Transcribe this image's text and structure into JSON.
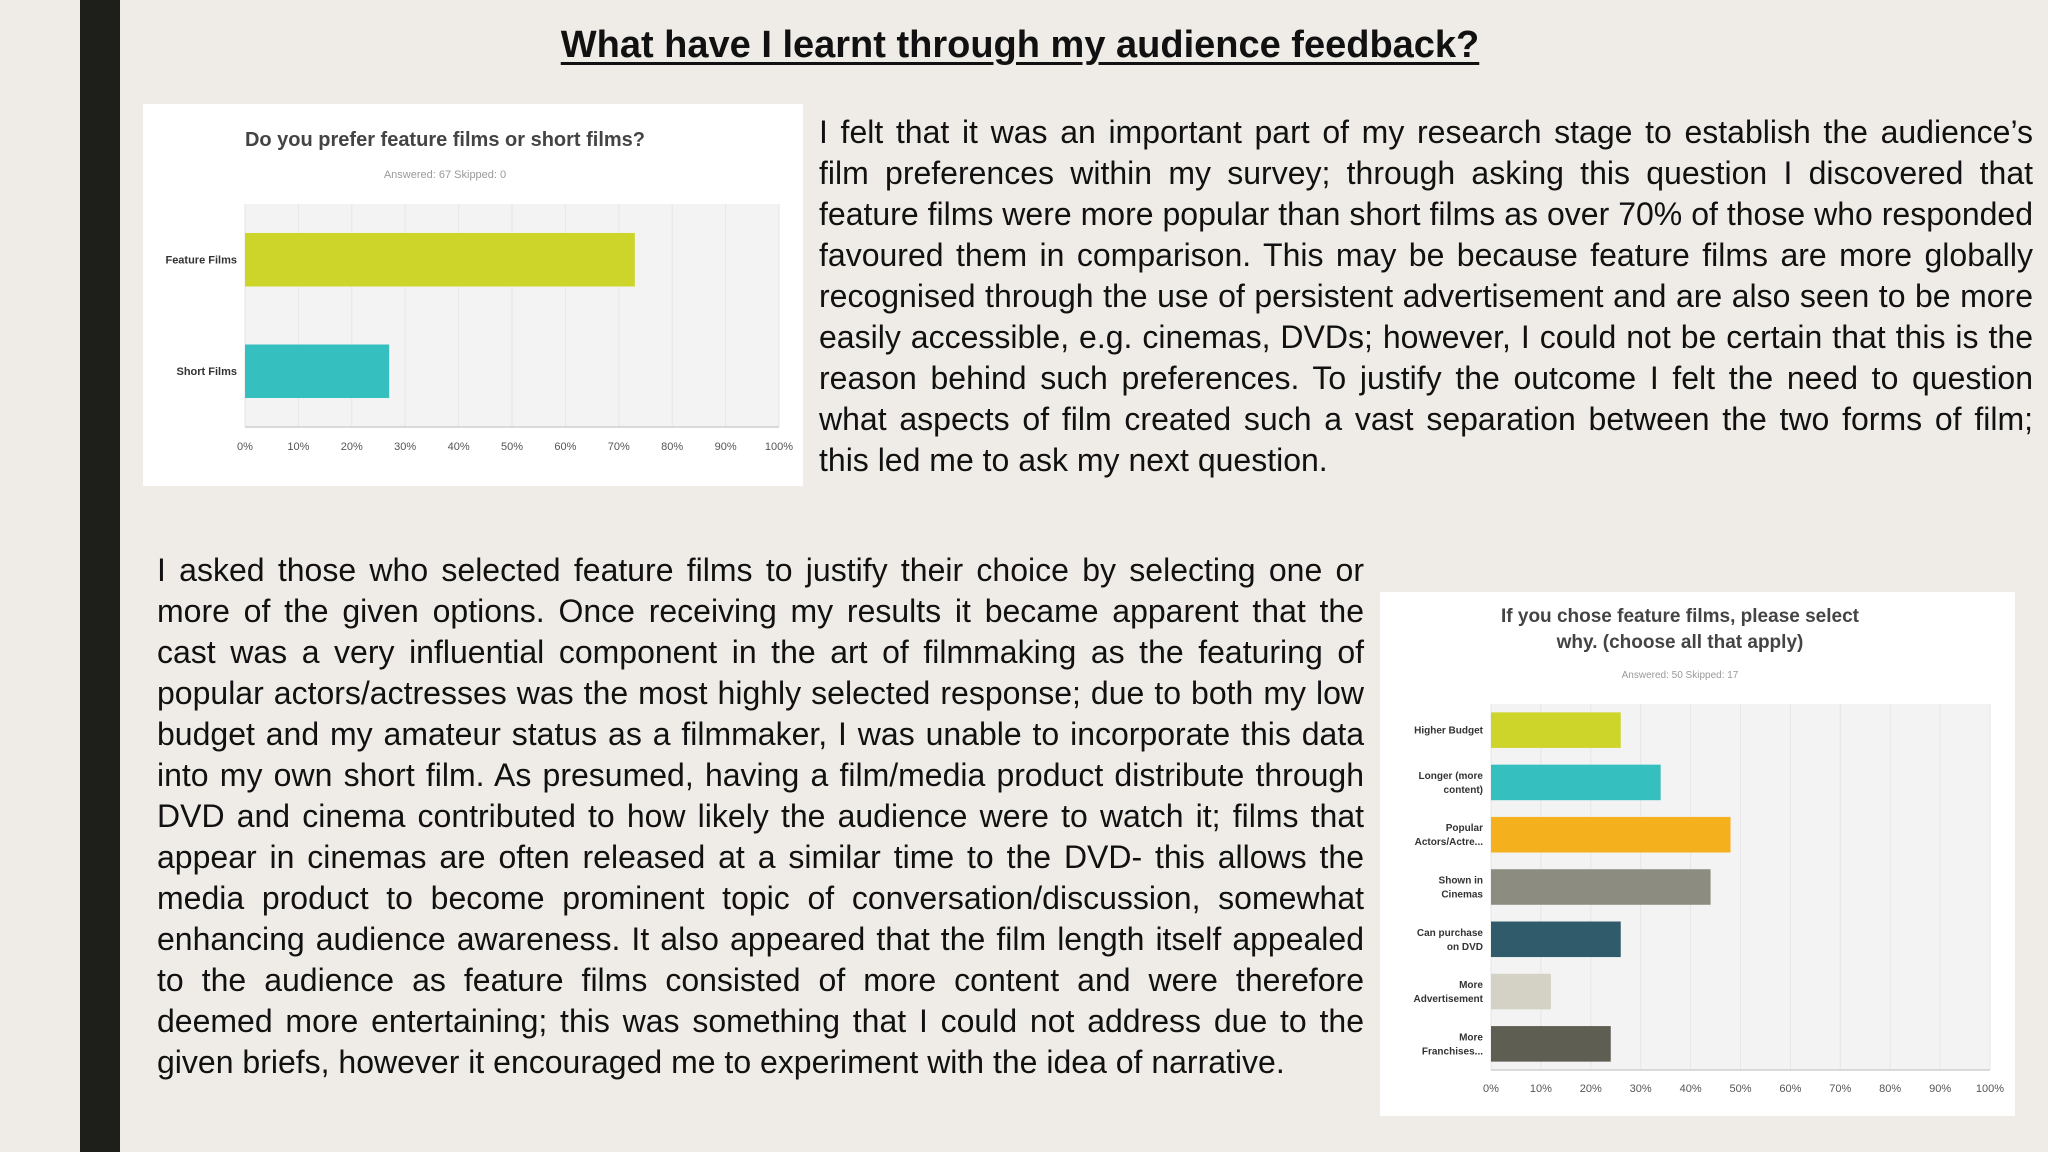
{
  "page": {
    "title": "What have I learnt through my audience feedback?",
    "paragraph1": "I felt that it was an important part of my research stage to establish the audience’s film preferences within my survey; through asking this question I discovered that feature films were more popular than short films as over 70% of those who responded favoured them in comparison. This may be because feature films are more globally recognised through the use of persistent advertisement and are also seen to be more easily accessible, e.g. cinemas, DVDs; however, I could not be certain that this is the reason behind such preferences. To justify the outcome I felt the need to question what aspects of film created such a vast separation between the two forms of film; this led me to ask my next question.",
    "paragraph2": "I asked those who selected feature films to justify their choice by selecting one or more of the given options. Once receiving my results it became apparent that the cast was a very influential component in the art of filmmaking as the featuring of popular actors/actresses was the most highly selected response; due to both my low budget and my amateur status as a filmmaker, I was unable to incorporate this data into my own short film. As presumed, having a film/media product distribute through DVD and cinema contributed to how likely the audience were to watch it; films that appear in cinemas are often released at a similar time to the DVD- this allows the media product to become prominent topic of conversation/discussion, somewhat enhancing audience awareness.  It also appeared that the film length itself appealed to the audience as feature films consisted of more content and were therefore deemed more entertaining; this was something that I could not address due to the given briefs, however it encouraged me to experiment with the idea of narrative."
  },
  "colors": {
    "sidebar": "#1e1f1b",
    "background": "#efece7",
    "grid": "#e6e6e6",
    "plot_bg": "#f3f3f3"
  },
  "chart_data": [
    {
      "type": "bar",
      "orientation": "horizontal",
      "title": "Do you prefer feature films or short films?",
      "subtitle": "Answered: 67    Skipped: 0",
      "categories": [
        "Feature Films",
        "Short Films"
      ],
      "values": [
        73,
        27
      ],
      "colors": [
        "#cdd52a",
        "#35bfbf"
      ],
      "xlim": [
        0,
        100
      ],
      "x_ticks": [
        "0%",
        "10%",
        "20%",
        "30%",
        "40%",
        "50%",
        "60%",
        "70%",
        "80%",
        "90%",
        "100%"
      ],
      "grid": true
    },
    {
      "type": "bar",
      "orientation": "horizontal",
      "title_lines": [
        "If you chose feature films, please select",
        "why. (choose all that apply)"
      ],
      "subtitle": "Answered: 50    Skipped: 17",
      "categories": [
        [
          "Higher Budget"
        ],
        [
          "Longer (more",
          "content)"
        ],
        [
          "Popular",
          "Actors/Actre..."
        ],
        [
          "Shown in",
          "Cinemas"
        ],
        [
          "Can purchase",
          "on DVD"
        ],
        [
          "More",
          "Advertisement"
        ],
        [
          "More",
          "Franchises..."
        ]
      ],
      "values": [
        26,
        34,
        48,
        44,
        26,
        12,
        24
      ],
      "colors": [
        "#cdd52a",
        "#35bfbf",
        "#f5b01e",
        "#8c8c80",
        "#2f5b6b",
        "#d4d2c4",
        "#5e5e52"
      ],
      "xlim": [
        0,
        100
      ],
      "x_ticks": [
        "0%",
        "10%",
        "20%",
        "30%",
        "40%",
        "50%",
        "60%",
        "70%",
        "80%",
        "90%",
        "100%"
      ],
      "grid": true
    }
  ]
}
